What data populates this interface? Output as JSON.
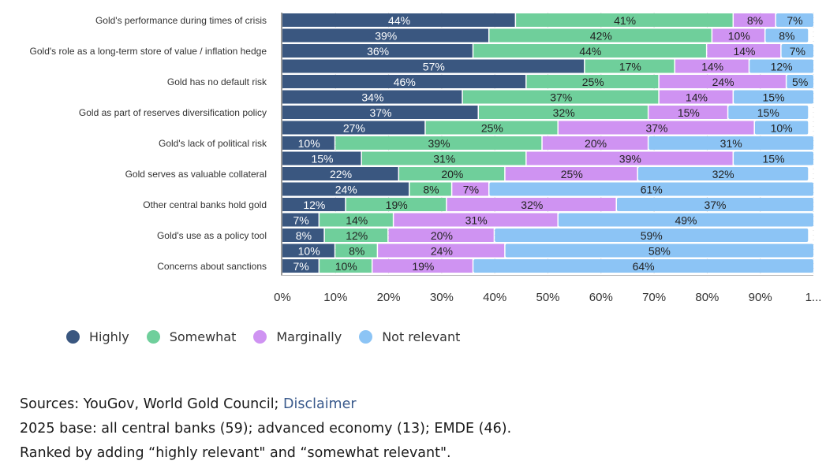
{
  "chart_data": {
    "type": "bar",
    "orientation": "horizontal",
    "stacked": true,
    "normalized": "percent",
    "title": "",
    "xlabel": "",
    "ylabel": "",
    "xlim": [
      0,
      100
    ],
    "grid": true,
    "legend_position": "bottom-left",
    "x_ticks": [
      "0%",
      "10%",
      "20%",
      "30%",
      "40%",
      "50%",
      "60%",
      "70%",
      "80%",
      "90%",
      "1..."
    ],
    "categories": [
      "Gold's performance during times of crisis",
      "Gold's role as a long-term store of value / inflation hedge",
      "Gold has no default risk",
      "Gold as part of reserves diversification policy",
      "Gold's lack of political risk",
      "Gold serves as valuable collateral",
      "Other central banks hold gold",
      "Gold's use as a policy tool",
      "Concerns about sanctions"
    ],
    "category_note": "Each category label spans two bars (unlabeled paired rows); the last category has a single bar.",
    "rows": [
      {
        "category_index": 0,
        "values": [
          44,
          41,
          8,
          7
        ]
      },
      {
        "category_index": 0,
        "values": [
          39,
          42,
          10,
          8
        ]
      },
      {
        "category_index": 1,
        "values": [
          36,
          44,
          14,
          7
        ]
      },
      {
        "category_index": 1,
        "values": [
          57,
          17,
          14,
          12
        ]
      },
      {
        "category_index": 2,
        "values": [
          46,
          25,
          24,
          5
        ]
      },
      {
        "category_index": 2,
        "values": [
          34,
          37,
          14,
          15
        ]
      },
      {
        "category_index": 3,
        "values": [
          37,
          32,
          15,
          15
        ]
      },
      {
        "category_index": 3,
        "values": [
          27,
          25,
          37,
          10
        ]
      },
      {
        "category_index": 4,
        "values": [
          10,
          39,
          20,
          31
        ]
      },
      {
        "category_index": 4,
        "values": [
          15,
          31,
          39,
          15
        ]
      },
      {
        "category_index": 5,
        "values": [
          22,
          20,
          25,
          32
        ]
      },
      {
        "category_index": 5,
        "values": [
          24,
          8,
          7,
          61
        ]
      },
      {
        "category_index": 6,
        "values": [
          12,
          19,
          32,
          37
        ]
      },
      {
        "category_index": 6,
        "values": [
          7,
          14,
          31,
          49
        ]
      },
      {
        "category_index": 7,
        "values": [
          8,
          12,
          20,
          59
        ]
      },
      {
        "category_index": 7,
        "values": [
          10,
          8,
          24,
          58
        ]
      },
      {
        "category_index": 8,
        "values": [
          7,
          10,
          19,
          64
        ]
      }
    ],
    "series": [
      {
        "name": "Highly",
        "color": "#3a5780",
        "label_color": "#ffffff"
      },
      {
        "name": "Somewhat",
        "color": "#6fcf9b",
        "label_color": "#222222"
      },
      {
        "name": "Marginally",
        "color": "#cf93f2",
        "label_color": "#222222"
      },
      {
        "name": "Not relevant",
        "color": "#8cc4f5",
        "label_color": "#222222"
      }
    ]
  },
  "legend": {
    "items": [
      {
        "label": "Highly",
        "color": "#3a5780"
      },
      {
        "label": "Somewhat",
        "color": "#6fcf9b"
      },
      {
        "label": "Marginally",
        "color": "#cf93f2"
      },
      {
        "label": "Not relevant",
        "color": "#8cc4f5"
      }
    ]
  },
  "notes": {
    "sources_prefix": "Sources: YouGov, World Gold Council; ",
    "disclaimer_link": "Disclaimer",
    "base": "2025 base: all central banks (59); advanced economy (13); EMDE (46).",
    "ranking": "Ranked by adding “highly relevant\" and “somewhat relevant\"."
  }
}
